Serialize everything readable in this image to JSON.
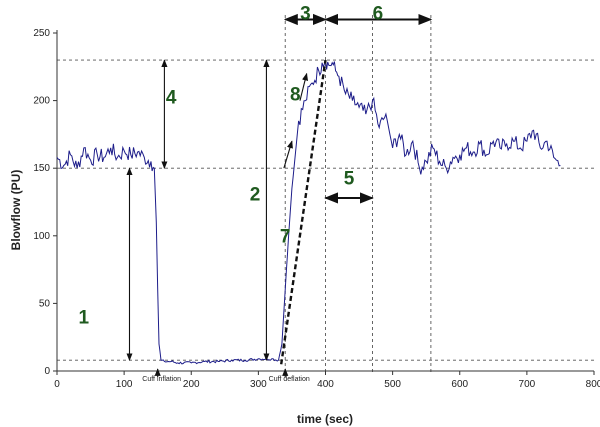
{
  "chart_data": {
    "type": "line",
    "xlabel": "time (sec)",
    "ylabel": "Blowflow (PU)",
    "xlim": [
      0,
      800
    ],
    "ylim": [
      0,
      250
    ],
    "x_ticks": [
      "0",
      "100",
      "200",
      "300",
      "400",
      "500",
      "600",
      "700",
      "800"
    ],
    "y_ticks": [
      "0",
      "50",
      "100",
      "150",
      "200",
      "250"
    ],
    "grid": false,
    "series": [
      {
        "color": "#1d1d8a",
        "x": [
          0,
          10,
          20,
          30,
          40,
          50,
          60,
          70,
          80,
          90,
          100,
          110,
          120,
          130,
          140,
          145,
          148,
          150,
          152,
          155,
          160,
          170,
          180,
          200,
          220,
          240,
          260,
          280,
          300,
          320,
          330,
          335,
          340,
          345,
          350,
          355,
          360,
          370,
          380,
          390,
          395,
          400,
          405,
          410,
          415,
          420,
          430,
          440,
          450,
          460,
          470,
          480,
          490,
          500,
          510,
          520,
          530,
          540,
          550,
          560,
          570,
          580,
          590,
          600,
          610,
          620,
          630,
          640,
          650,
          660,
          670,
          680,
          690,
          700,
          710,
          720,
          730,
          740,
          750
        ],
        "y": [
          158,
          152,
          160,
          150,
          165,
          156,
          160,
          158,
          165,
          158,
          163,
          160,
          162,
          158,
          155,
          150,
          110,
          60,
          20,
          8,
          7,
          7,
          6,
          6,
          7,
          7,
          8,
          8,
          9,
          9,
          8,
          20,
          60,
          100,
          135,
          160,
          185,
          200,
          213,
          222,
          228,
          230,
          226,
          228,
          222,
          218,
          205,
          200,
          195,
          190,
          200,
          180,
          190,
          165,
          175,
          160,
          170,
          150,
          155,
          165,
          155,
          150,
          158,
          160,
          165,
          162,
          168,
          160,
          170,
          165,
          168,
          170,
          165,
          170,
          178,
          165,
          170,
          158,
          152
        ]
      }
    ],
    "reference_lines": {
      "horizontal": [
        230,
        150,
        8
      ],
      "vertical": [
        340,
        400,
        470,
        557
      ]
    },
    "annotations": [
      {
        "label": "1",
        "x": 40,
        "y": 35
      },
      {
        "label": "2",
        "x": 295,
        "y": 126
      },
      {
        "label": "3",
        "x": 370,
        "y": 260
      },
      {
        "label": "4",
        "x": 170,
        "y": 198
      },
      {
        "label": "5",
        "x": 435,
        "y": 138
      },
      {
        "label": "6",
        "x": 478,
        "y": 260
      },
      {
        "label": "7",
        "x": 340,
        "y": 95
      },
      {
        "label": "8",
        "x": 355,
        "y": 200
      }
    ],
    "event_labels": [
      {
        "text": "Cuff inflation",
        "x": 150
      },
      {
        "text": "Cuff deflation",
        "x": 340
      }
    ]
  }
}
